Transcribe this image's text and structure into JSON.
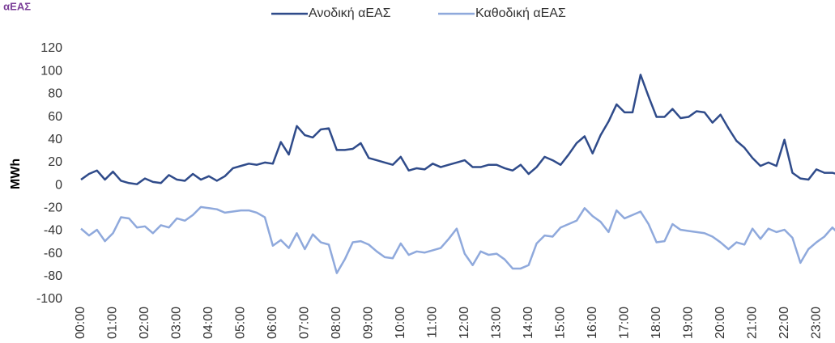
{
  "chart_data": {
    "type": "line",
    "title": "• αΕΑΣ",
    "y_label": "MWh",
    "categories": [
      "00:00",
      null,
      null,
      null,
      "01:00",
      null,
      null,
      null,
      "02:00",
      null,
      null,
      null,
      "03:00",
      null,
      null,
      null,
      "04:00",
      null,
      null,
      null,
      "05:00",
      null,
      null,
      null,
      "06:00",
      null,
      null,
      null,
      "07:00",
      null,
      null,
      null,
      "08:00",
      null,
      null,
      null,
      "09:00",
      null,
      null,
      null,
      "10:00",
      null,
      null,
      null,
      "11:00",
      null,
      null,
      null,
      "12:00",
      null,
      null,
      null,
      "13:00",
      null,
      null,
      null,
      "14:00",
      null,
      null,
      null,
      "15:00",
      null,
      null,
      null,
      "16:00",
      null,
      null,
      null,
      "17:00",
      null,
      null,
      null,
      "18:00",
      null,
      null,
      null,
      "19:00",
      null,
      null,
      null,
      "20:00",
      null,
      null,
      null,
      "21:00",
      null,
      null,
      null,
      "22:00",
      null,
      null,
      null,
      "23:00",
      null,
      null,
      null
    ],
    "series": [
      {
        "name": "Ανοδική αΕΑΣ",
        "color": "#2f4b8a",
        "values": [
          5,
          10,
          13,
          5,
          12,
          4,
          2,
          1,
          6,
          3,
          2,
          9,
          5,
          4,
          10,
          5,
          8,
          4,
          8,
          15,
          17,
          19,
          18,
          20,
          19,
          38,
          27,
          52,
          44,
          42,
          49,
          50,
          31,
          31,
          32,
          37,
          24,
          22,
          20,
          18,
          25,
          13,
          15,
          14,
          19,
          16,
          18,
          20,
          22,
          16,
          16,
          18,
          18,
          15,
          13,
          18,
          10,
          16,
          25,
          22,
          18,
          27,
          37,
          43,
          28,
          44,
          56,
          71,
          64,
          64,
          97,
          78,
          60,
          60,
          67,
          59,
          60,
          65,
          64,
          55,
          62,
          50,
          39,
          33,
          24,
          17,
          20,
          17,
          40,
          11,
          6,
          5,
          14,
          11,
          11,
          9
        ]
      },
      {
        "name": "Καθοδική αΕΑΣ",
        "color": "#8fa9dc",
        "values": [
          -38,
          -44,
          -39,
          -49,
          -42,
          -28,
          -29,
          -37,
          -36,
          -42,
          -35,
          -37,
          -29,
          -31,
          -26,
          -19,
          -20,
          -21,
          -24,
          -23,
          -22,
          -22,
          -24,
          -28,
          -53,
          -48,
          -55,
          -42,
          -56,
          -43,
          -50,
          -52,
          -77,
          -65,
          -50,
          -49,
          -52,
          -58,
          -63,
          -64,
          -51,
          -61,
          -58,
          -59,
          -57,
          -55,
          -47,
          -38,
          -60,
          -70,
          -58,
          -61,
          -60,
          -65,
          -73,
          -73,
          -70,
          -51,
          -44,
          -45,
          -37,
          -34,
          -31,
          -20,
          -27,
          -32,
          -41,
          -22,
          -29,
          -26,
          -23,
          -34,
          -50,
          -49,
          -34,
          -39,
          -40,
          -41,
          -42,
          -45,
          -50,
          -56,
          -50,
          -52,
          -38,
          -47,
          -38,
          -41,
          -39,
          -46,
          -68,
          -56,
          -50,
          -45,
          -37,
          -44
        ]
      }
    ],
    "ylim": [
      -100,
      120
    ],
    "yticks": [
      -100,
      -80,
      -60,
      -40,
      -20,
      0,
      20,
      40,
      60,
      80,
      100,
      120
    ],
    "grid": false,
    "legend": "top"
  }
}
